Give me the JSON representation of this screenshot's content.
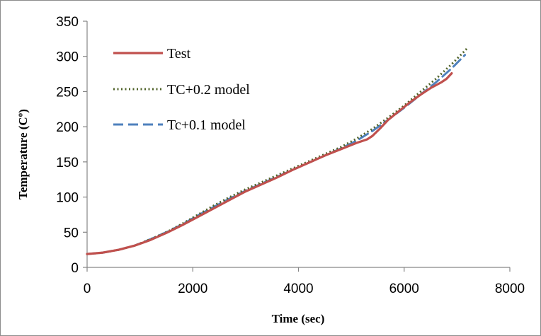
{
  "chart_data": {
    "type": "line",
    "title": "",
    "xlabel": "Time (sec)",
    "ylabel": "Temperature (Cº)",
    "xlim": [
      0,
      8000
    ],
    "ylim": [
      0,
      350
    ],
    "x_ticks": [
      "0",
      "2000",
      "4000",
      "6000",
      "8000"
    ],
    "y_ticks": [
      "0",
      "50",
      "100",
      "150",
      "200",
      "250",
      "300",
      "350"
    ],
    "grid": false,
    "legend_position": "top-left",
    "series": [
      {
        "name": "Test",
        "color": "#c0504d",
        "dash": "solid",
        "x": [
          0,
          300,
          600,
          900,
          1200,
          1500,
          1800,
          2100,
          2400,
          2700,
          3000,
          3300,
          3600,
          3900,
          4200,
          4500,
          4800,
          5100,
          5300,
          5400,
          5550,
          5700,
          5900,
          6100,
          6300,
          6500,
          6700,
          6800,
          6900
        ],
        "values": [
          19,
          21,
          25,
          31,
          39,
          49,
          60,
          72,
          84,
          96,
          108,
          118,
          128,
          139,
          149,
          159,
          168,
          177,
          182,
          187,
          198,
          210,
          222,
          234,
          245,
          255,
          263,
          268,
          276
        ]
      },
      {
        "name": "TC+0.2 model",
        "color": "#4f6228",
        "dash": "dotted",
        "x": [
          0,
          300,
          600,
          900,
          1200,
          1500,
          1800,
          2100,
          2400,
          2700,
          3000,
          3300,
          3600,
          3900,
          4200,
          4500,
          4800,
          5100,
          5400,
          5700,
          6000,
          6300,
          6600,
          6900,
          7200
        ],
        "values": [
          19,
          21,
          25,
          31,
          40,
          50,
          62,
          75,
          88,
          100,
          111,
          121,
          131,
          141,
          151,
          161,
          171,
          183,
          197,
          213,
          230,
          249,
          268,
          289,
          312
        ]
      },
      {
        "name": "Tc+0.1 model",
        "color": "#4f81bd",
        "dash": "dashed",
        "x": [
          0,
          300,
          600,
          900,
          1200,
          1500,
          1800,
          2100,
          2400,
          2700,
          3000,
          3300,
          3600,
          3900,
          4200,
          4500,
          4800,
          5100,
          5400,
          5700,
          6000,
          6300,
          6600,
          6900,
          7150
        ],
        "values": [
          19,
          21,
          25,
          31,
          40,
          50,
          61,
          74,
          86,
          98,
          109,
          119,
          129,
          139,
          149,
          159,
          169,
          180,
          194,
          210,
          227,
          245,
          263,
          283,
          302
        ]
      }
    ]
  }
}
